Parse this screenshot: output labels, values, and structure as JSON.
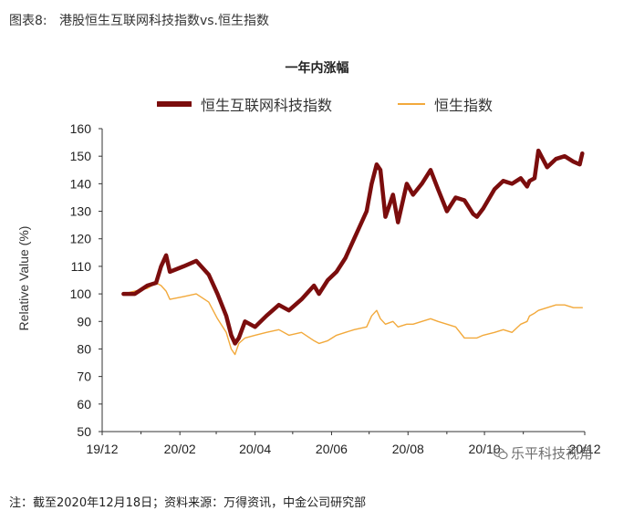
{
  "figure_title": "图表8:   港股恒生互联网科技指数vs.恒生指数",
  "footnote": "注：截至2020年12月18日；资料来源：万得资讯，中金公司研究部",
  "watermark": "乐平科技视角",
  "colors": {
    "series_1": "#7b0d0d",
    "series_2": "#f2a93b",
    "axis": "#333333"
  },
  "chart_data": {
    "type": "line",
    "title": "一年内涨幅",
    "ylabel": "Relative Value (%)",
    "xlabel": "",
    "ylim": [
      50,
      160
    ],
    "yticks": [
      50,
      60,
      70,
      80,
      90,
      100,
      110,
      120,
      130,
      140,
      150,
      160
    ],
    "xticks": [
      "19/12",
      "20/02",
      "20/04",
      "20/06",
      "20/08",
      "20/10",
      "20/12"
    ],
    "grid": false,
    "legend_position": "top",
    "x": [
      "2019-12-18",
      "2019-12-27",
      "2020-01-06",
      "2020-01-13",
      "2020-01-17",
      "2020-01-21",
      "2020-01-24",
      "2020-02-04",
      "2020-02-14",
      "2020-02-24",
      "2020-03-02",
      "2020-03-09",
      "2020-03-13",
      "2020-03-16",
      "2020-03-19",
      "2020-03-24",
      "2020-04-01",
      "2020-04-10",
      "2020-04-20",
      "2020-04-28",
      "2020-05-08",
      "2020-05-18",
      "2020-05-22",
      "2020-05-29",
      "2020-06-05",
      "2020-06-12",
      "2020-06-19",
      "2020-06-29",
      "2020-07-03",
      "2020-07-07",
      "2020-07-10",
      "2020-07-14",
      "2020-07-20",
      "2020-07-24",
      "2020-07-31",
      "2020-08-05",
      "2020-08-12",
      "2020-08-19",
      "2020-08-25",
      "2020-09-01",
      "2020-09-08",
      "2020-09-15",
      "2020-09-22",
      "2020-09-25",
      "2020-09-30",
      "2020-10-09",
      "2020-10-16",
      "2020-10-23",
      "2020-10-30",
      "2020-11-04",
      "2020-11-06",
      "2020-11-10",
      "2020-11-13",
      "2020-11-20",
      "2020-11-27",
      "2020-12-04",
      "2020-12-11",
      "2020-12-16",
      "2020-12-18"
    ],
    "series": [
      {
        "name": "恒生互联网科技指数",
        "values": [
          100,
          100,
          103,
          104,
          110,
          114,
          108,
          110,
          112,
          107,
          100,
          92,
          85,
          82,
          84,
          90,
          88,
          92,
          96,
          94,
          98,
          103,
          100,
          105,
          108,
          113,
          120,
          130,
          140,
          147,
          145,
          128,
          136,
          126,
          140,
          136,
          140,
          145,
          138,
          130,
          135,
          134,
          129,
          128,
          131,
          138,
          141,
          140,
          142,
          139,
          141,
          142,
          152,
          146,
          149,
          150,
          148,
          147,
          151
        ]
      },
      {
        "name": "恒生指数",
        "values": [
          100,
          101,
          102,
          104,
          103,
          101,
          98,
          99,
          100,
          97,
          91,
          86,
          80,
          78,
          82,
          84,
          85,
          86,
          87,
          85,
          86,
          83,
          82,
          83,
          85,
          86,
          87,
          88,
          92,
          94,
          91,
          89,
          90,
          88,
          89,
          89,
          90,
          91,
          90,
          89,
          88,
          84,
          84,
          84,
          85,
          86,
          87,
          86,
          89,
          90,
          92,
          93,
          94,
          95,
          96,
          96,
          95,
          95,
          95
        ]
      }
    ]
  }
}
